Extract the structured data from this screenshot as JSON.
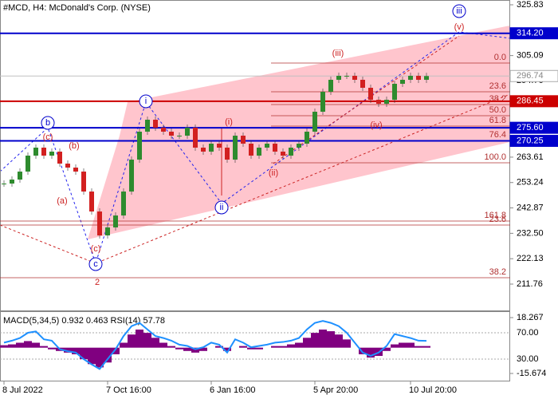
{
  "chart_data": [
    {
      "type": "candlestick",
      "title": "#MCD, H4:  McDonald's Corp. (NYSE)",
      "categories": [
        "8 Jul 2022",
        null,
        null,
        null,
        null,
        null,
        null,
        null,
        null,
        null,
        null,
        null,
        null,
        "7 Oct 16:00",
        null,
        null,
        null,
        null,
        null,
        null,
        null,
        null,
        null,
        null,
        null,
        null,
        "6 Jan 16:00",
        null,
        null,
        null,
        null,
        null,
        null,
        null,
        null,
        null,
        null,
        null,
        null,
        "5 Apr 20:00",
        null,
        null,
        null,
        null,
        null,
        null,
        null,
        null,
        null,
        null,
        null,
        "10 Jul 20:00",
        null,
        null
      ],
      "values": [
        252.82,
        254.45,
        257.71,
        264.23,
        267.49,
        264.23,
        265.86,
        260.97,
        259.34,
        257.71,
        249.56,
        241.41,
        231.64,
        234.9,
        239.78,
        249.56,
        262.6,
        274.01,
        278.9,
        275.64,
        274.01,
        272.38,
        272.38,
        275.64,
        267.49,
        265.86,
        269.12,
        267.49,
        262.6,
        272.38,
        269.12,
        264.23,
        267.49,
        269.12,
        265.86,
        264.23,
        267.49,
        269.12,
        274.01,
        282.16,
        290.31,
        295.2,
        296.83,
        296.83,
        295.2,
        291.94,
        287.05,
        285.42,
        287.05,
        293.57,
        295.2,
        296.83,
        295.2,
        296.74
      ],
      "up_color": "#2e8b2e",
      "down_color": "#d22020",
      "ylim": [
        200.68,
        327.79
      ],
      "yticks": [
        325.83,
        305.09,
        294.76,
        263.61,
        253.24,
        242.87,
        {
          "value": 232.5,
          "label": "232.50"
        },
        222.13,
        211.76
      ],
      "levels": [
        {
          "value": 314.2,
          "label": "314.20",
          "color": "#0000cc"
        },
        {
          "value": 296.74,
          "label": "296.74",
          "color": "#c0c0c0"
        },
        {
          "value": 286.45,
          "label": "286.45",
          "color": "#cc0000"
        },
        {
          "value": 275.6,
          "label": "275.60",
          "color": "#0000cc"
        },
        {
          "value": 270.25,
          "label": "270.25",
          "color": "#0000cc"
        }
      ],
      "fibonacci": [
        {
          "label": "0.0",
          "value": 302.04
        },
        {
          "label": "23.6",
          "value": 290.3
        },
        {
          "label": "38.2",
          "value": 285.09
        },
        {
          "label": "50.0",
          "value": 280.53
        },
        {
          "label": "61.8",
          "value": 276.29
        },
        {
          "label": "76.4",
          "value": 270.42
        },
        {
          "label": "100.0",
          "value": 261.3
        },
        {
          "label": "161.8",
          "value": 237.5
        },
        {
          "label": "23.6",
          "value": 235.87
        },
        {
          "label": "38.2",
          "value": 214.36
        }
      ],
      "annotations": [
        {
          "text": "b",
          "color": "#0000cc"
        },
        {
          "text": "c",
          "color": "#0000cc"
        },
        {
          "text": "i",
          "color": "#0000cc"
        },
        {
          "text": "ii",
          "color": "#0000cc"
        },
        {
          "text": "iii",
          "color": "#0000cc"
        },
        {
          "text": "(c)",
          "color": "#cc2222"
        },
        {
          "text": "(b)",
          "color": "#cc2222"
        },
        {
          "text": "(a)",
          "color": "#cc2222"
        },
        {
          "text": "(c)",
          "color": "#cc2222"
        },
        {
          "text": "2",
          "color": "#cc2222"
        },
        {
          "text": "(i)",
          "color": "#cc2222"
        },
        {
          "text": "(ii)",
          "color": "#cc2222"
        },
        {
          "text": "(iii)",
          "color": "#cc2222"
        },
        {
          "text": "(iv)",
          "color": "#cc2222"
        },
        {
          "text": "(v)",
          "color": "#cc2222"
        }
      ]
    },
    {
      "type": "indicator",
      "title": "MACD(5,34,5) 0.932 0.463 RSI(14) 57.78",
      "series": [
        {
          "color": "#800080",
          "values": [
            1.5,
            2,
            3,
            4,
            3,
            1,
            -1,
            -2,
            -3,
            -4,
            -7,
            -10,
            -12,
            -9,
            -4,
            3,
            8,
            11,
            9,
            6,
            3,
            1,
            -1,
            -2,
            -3,
            -2,
            0,
            1,
            -2,
            0,
            1,
            -1,
            -1,
            0,
            1,
            1,
            2,
            3,
            6,
            9,
            11,
            10,
            8,
            5,
            0,
            -4,
            -6,
            -5,
            -2,
            2,
            3,
            3,
            1,
            1
          ]
        },
        {
          "color": "#1e90ff",
          "axis": "y2",
          "values": [
            55,
            58,
            62,
            70,
            72,
            60,
            58,
            45,
            42,
            40,
            30,
            22,
            15,
            30,
            45,
            65,
            80,
            85,
            75,
            65,
            62,
            58,
            52,
            50,
            45,
            48,
            55,
            52,
            40,
            60,
            55,
            48,
            50,
            52,
            55,
            56,
            58,
            62,
            75,
            85,
            88,
            85,
            80,
            70,
            55,
            40,
            35,
            40,
            50,
            68,
            65,
            62,
            58,
            57.78
          ]
        }
      ],
      "ylim": [
        -20.52,
        22.15
      ],
      "yticks": [
        18.267,
        -15.674
      ],
      "y2lim": [
        -3.9,
        102.7
      ],
      "y2ticks": [
        {
          "value": 70,
          "label": "70.00"
        },
        {
          "value": 30,
          "label": "30.00"
        }
      ]
    }
  ]
}
